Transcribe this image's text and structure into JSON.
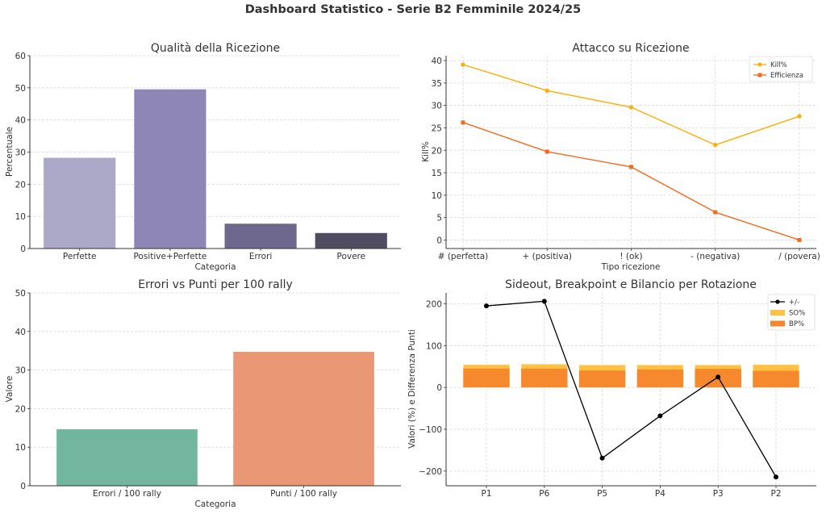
{
  "dashboard": {
    "title": "Dashboard Statistico - Serie B2 Femminile 2024/25"
  },
  "chart_data": [
    {
      "id": "ricezione",
      "type": "bar",
      "title": "Qualità della Ricezione",
      "xlabel": "Categoria",
      "ylabel": "Percentuale",
      "categories": [
        "Perfette",
        "Positive+Perfette",
        "Errori",
        "Povere"
      ],
      "values": [
        28.3,
        49.6,
        7.8,
        4.9
      ],
      "colors": [
        "#aca8c8",
        "#8e86b5",
        "#6e688f",
        "#504d63"
      ],
      "ylim": [
        0,
        60
      ],
      "yticks": [
        0,
        10,
        20,
        30,
        40,
        50,
        60
      ],
      "grid": "y"
    },
    {
      "id": "attacco",
      "type": "line",
      "title": "Attacco su Ricezione",
      "xlabel": "Tipo ricezione",
      "ylabel": "Kill%",
      "categories": [
        "# (perfetta)",
        "+ (positiva)",
        "! (ok)",
        "- (negativa)",
        "/ (povera)"
      ],
      "series": [
        {
          "name": "Kill%",
          "values": [
            39.1,
            33.3,
            29.6,
            21.2,
            27.6
          ],
          "color": "#ffad00",
          "marker": "circle"
        },
        {
          "name": "Efficienza",
          "values": [
            26.2,
            19.7,
            16.3,
            6.2,
            0.0
          ],
          "color": "#f26b21",
          "marker": "square"
        }
      ],
      "ylim": [
        -1.9,
        41.1
      ],
      "yticks": [
        0,
        5,
        10,
        15,
        20,
        25,
        30,
        35,
        40
      ],
      "grid": "both",
      "legend": "top-right"
    },
    {
      "id": "errori-punti",
      "type": "bar",
      "title": "Errori vs Punti per 100 rally",
      "xlabel": "Categoria",
      "ylabel": "Valore",
      "categories": [
        "Errori / 100 rally",
        "Punti / 100 rally"
      ],
      "values": [
        14.7,
        34.8
      ],
      "colors": [
        "#72b6a0",
        "#e99775"
      ],
      "ylim": [
        0,
        50
      ],
      "yticks": [
        0,
        10,
        20,
        30,
        40,
        50
      ],
      "grid": "y"
    },
    {
      "id": "rotazioni",
      "type": "bar",
      "title": "Sideout, Breakpoint e Bilancio per Rotazione",
      "xlabel": "",
      "ylabel": "Valori (%) e Differenza Punti",
      "categories": [
        "P1",
        "P6",
        "P5",
        "P4",
        "P3",
        "P2"
      ],
      "series": [
        {
          "name": "+/-",
          "kind": "line",
          "values": [
            195,
            206,
            -169,
            -68,
            25,
            -214
          ],
          "color": "#000000"
        },
        {
          "name": "SO%",
          "kind": "bar",
          "values": [
            54.7,
            55.9,
            54.0,
            54.0,
            54.0,
            54.7
          ],
          "color": "#ffc142"
        },
        {
          "name": "BP%",
          "kind": "bar",
          "values": [
            45.0,
            45.0,
            40.5,
            43.1,
            44.4,
            39.9
          ],
          "color": "#f5852c"
        }
      ],
      "ylim": [
        -235,
        226
      ],
      "yticks": [
        -200,
        -100,
        0,
        100,
        200
      ],
      "ytick_labels": [
        "−200",
        "−100",
        "0",
        "100",
        "200"
      ],
      "grid": "both",
      "legend": "top-right"
    }
  ]
}
